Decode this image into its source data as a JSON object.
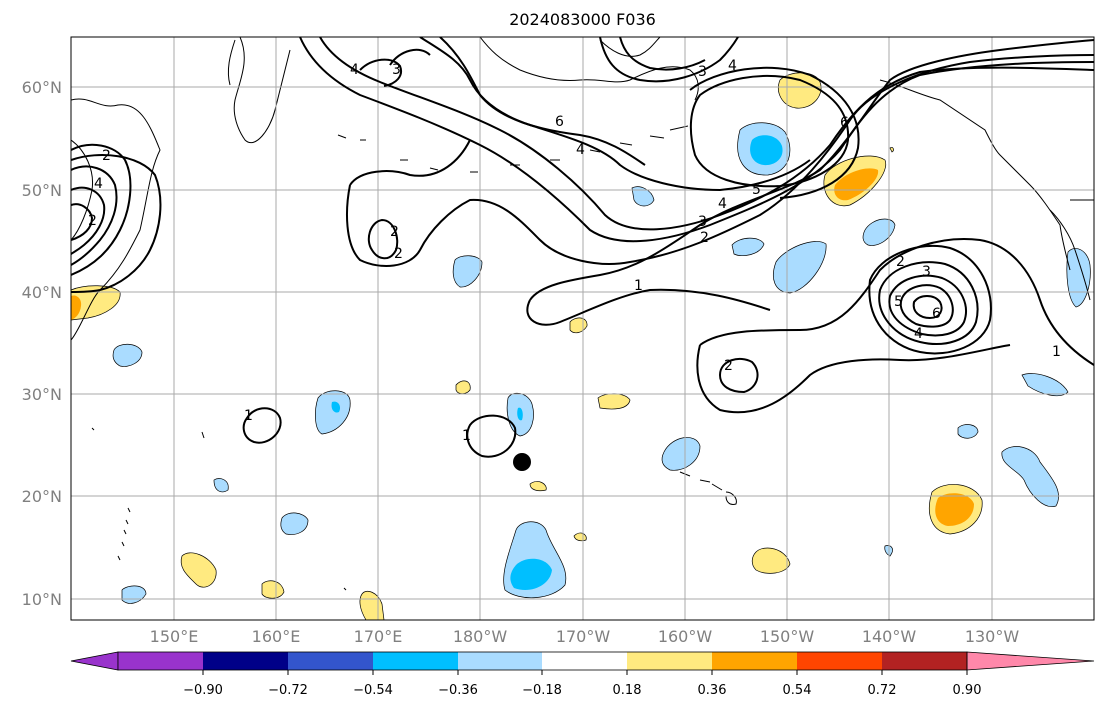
{
  "title": "2024083000 F036",
  "map": {
    "lat_labels": [
      "60°N",
      "50°N",
      "40°N",
      "30°N",
      "20°N",
      "10°N"
    ],
    "lat_values": [
      60,
      50,
      40,
      30,
      20,
      10
    ],
    "lon_labels": [
      "150°E",
      "160°E",
      "170°E",
      "180°W",
      "170°W",
      "160°W",
      "150°W",
      "140°W",
      "130°W"
    ],
    "lon_values": [
      150,
      160,
      170,
      180,
      190,
      200,
      210,
      220,
      230
    ],
    "extent": {
      "lon_min": 140,
      "lon_max": 240,
      "lat_min": 8,
      "lat_max": 65
    }
  },
  "contour_labels": [
    "4",
    "3",
    "6",
    "3",
    "4",
    "6",
    "4",
    "5",
    "4",
    "3",
    "2",
    "2",
    "1",
    "2",
    "3",
    "5",
    "4",
    "6",
    "2",
    "1",
    "2",
    "1",
    "1",
    "2",
    "4",
    "2"
  ],
  "colorbar": {
    "colors": [
      "#9933cc",
      "#000088",
      "#3355cc",
      "#00bfff",
      "#aadcff",
      "#ffffff",
      "#ffea80",
      "#ffa500",
      "#ff4500",
      "#b22222",
      "#ff88aa"
    ],
    "tick_labels": [
      "−0.90",
      "−0.72",
      "−0.54",
      "−0.36",
      "−0.18",
      "0.18",
      "0.36",
      "0.54",
      "0.72",
      "0.90"
    ]
  },
  "colors": {
    "contour": "#000000",
    "grid": "#aaaaaa",
    "coast": "#000000",
    "neg_light": "#aadcff",
    "neg_mid": "#00bfff",
    "pos_light": "#ffea80",
    "pos_mid": "#ffa500"
  }
}
